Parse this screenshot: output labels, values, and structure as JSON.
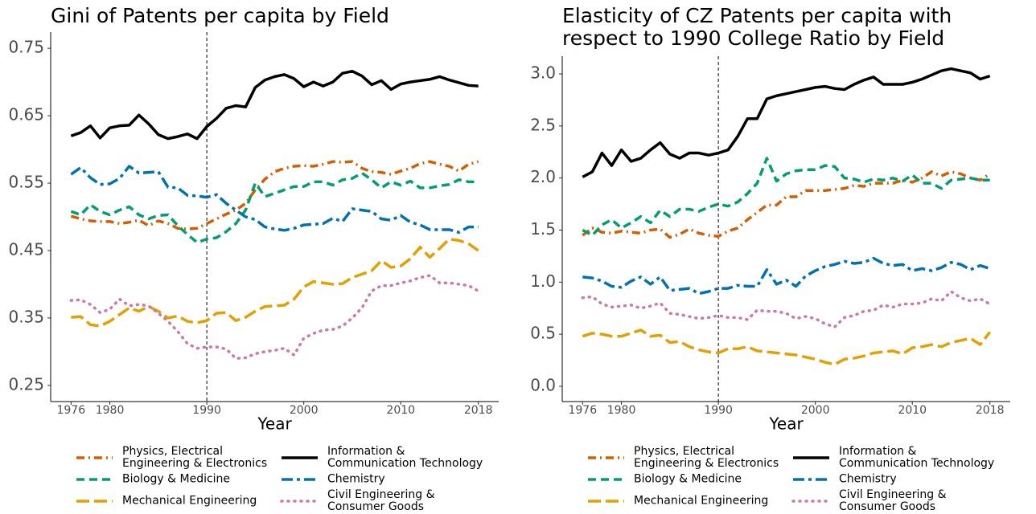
{
  "chart_data": [
    {
      "type": "line",
      "title": "Gini of Patents per capita by Field",
      "xlabel": "Year",
      "x": [
        1976,
        1977,
        1978,
        1979,
        1980,
        1981,
        1982,
        1983,
        1984,
        1985,
        1986,
        1987,
        1988,
        1989,
        1990,
        1991,
        1992,
        1993,
        1994,
        1995,
        1996,
        1997,
        1998,
        1999,
        2000,
        2001,
        2002,
        2003,
        2004,
        2005,
        2006,
        2007,
        2008,
        2009,
        2010,
        2011,
        2012,
        2013,
        2014,
        2015,
        2016,
        2017,
        2018
      ],
      "xlim": [
        1973.9,
        2020.1
      ],
      "xticks": [
        1976,
        1980,
        1990,
        2000,
        2010,
        2018
      ],
      "ylim": [
        0.226,
        0.774
      ],
      "yticks": [
        0.25,
        0.35,
        0.45,
        0.55,
        0.65,
        0.75
      ],
      "vline": 1990,
      "grid": false,
      "legend": "bottom",
      "series": [
        {
          "name": "Physics, Electrical Engineering & Electronics",
          "color": "#D55E00",
          "linestyle": "dashdot",
          "values": [
            0.501,
            0.497,
            0.494,
            0.493,
            0.493,
            0.49,
            0.492,
            0.495,
            0.487,
            0.494,
            0.49,
            0.483,
            0.482,
            0.483,
            0.49,
            0.497,
            0.504,
            0.51,
            0.52,
            0.54,
            0.556,
            0.567,
            0.572,
            0.575,
            0.576,
            0.575,
            0.578,
            0.582,
            0.581,
            0.582,
            0.572,
            0.567,
            0.566,
            0.563,
            0.568,
            0.572,
            0.579,
            0.582,
            0.578,
            0.575,
            0.568,
            0.578,
            0.582
          ]
        },
        {
          "name": "Biology & Medicine",
          "color": "#009E73",
          "linestyle": "dashed",
          "values": [
            0.508,
            0.503,
            0.518,
            0.508,
            0.503,
            0.51,
            0.515,
            0.503,
            0.497,
            0.502,
            0.503,
            0.487,
            0.474,
            0.462,
            0.467,
            0.469,
            0.478,
            0.49,
            0.51,
            0.55,
            0.53,
            0.535,
            0.54,
            0.545,
            0.545,
            0.552,
            0.552,
            0.547,
            0.555,
            0.557,
            0.565,
            0.555,
            0.543,
            0.552,
            0.547,
            0.553,
            0.543,
            0.543,
            0.546,
            0.548,
            0.555,
            0.552,
            0.552
          ]
        },
        {
          "name": "Mechanical Engineering",
          "color": "#E69F00",
          "linestyle": "longdash",
          "values": [
            0.351,
            0.352,
            0.34,
            0.338,
            0.345,
            0.355,
            0.365,
            0.36,
            0.367,
            0.36,
            0.35,
            0.353,
            0.345,
            0.343,
            0.346,
            0.357,
            0.358,
            0.346,
            0.351,
            0.36,
            0.367,
            0.368,
            0.369,
            0.378,
            0.396,
            0.404,
            0.402,
            0.4,
            0.401,
            0.41,
            0.415,
            0.42,
            0.435,
            0.425,
            0.427,
            0.438,
            0.455,
            0.44,
            0.453,
            0.467,
            0.465,
            0.46,
            0.45
          ]
        },
        {
          "name": "Information & Communication Technology",
          "color": "#000000",
          "linestyle": "solid",
          "values": [
            0.62,
            0.625,
            0.635,
            0.617,
            0.632,
            0.635,
            0.636,
            0.651,
            0.638,
            0.622,
            0.616,
            0.619,
            0.623,
            0.616,
            0.634,
            0.646,
            0.661,
            0.665,
            0.663,
            0.692,
            0.703,
            0.708,
            0.711,
            0.705,
            0.693,
            0.7,
            0.694,
            0.7,
            0.713,
            0.716,
            0.709,
            0.696,
            0.702,
            0.689,
            0.697,
            0.7,
            0.702,
            0.704,
            0.708,
            0.703,
            0.699,
            0.695,
            0.694
          ]
        },
        {
          "name": "Chemistry",
          "color": "#0072B2",
          "linestyle": "longdashdot",
          "values": [
            0.563,
            0.573,
            0.558,
            0.548,
            0.549,
            0.557,
            0.575,
            0.565,
            0.566,
            0.567,
            0.544,
            0.543,
            0.532,
            0.531,
            0.529,
            0.533,
            0.52,
            0.51,
            0.5,
            0.496,
            0.485,
            0.482,
            0.48,
            0.483,
            0.488,
            0.489,
            0.49,
            0.498,
            0.493,
            0.512,
            0.51,
            0.508,
            0.497,
            0.495,
            0.502,
            0.492,
            0.488,
            0.481,
            0.481,
            0.481,
            0.477,
            0.485,
            0.485
          ]
        },
        {
          "name": "Civil Engineering & Consumer Goods",
          "color": "#CC79A7",
          "linestyle": "dotted",
          "values": [
            0.376,
            0.377,
            0.37,
            0.358,
            0.363,
            0.378,
            0.368,
            0.37,
            0.368,
            0.357,
            0.345,
            0.33,
            0.312,
            0.305,
            0.307,
            0.307,
            0.304,
            0.29,
            0.291,
            0.297,
            0.3,
            0.302,
            0.305,
            0.295,
            0.32,
            0.327,
            0.332,
            0.333,
            0.338,
            0.35,
            0.365,
            0.39,
            0.398,
            0.398,
            0.402,
            0.405,
            0.41,
            0.413,
            0.402,
            0.402,
            0.4,
            0.398,
            0.39
          ]
        }
      ]
    },
    {
      "type": "line",
      "title": "Elasticity of CZ Patents per capita with respect to 1990 College Ratio by Field",
      "xlabel": "Year",
      "x": [
        1976,
        1977,
        1978,
        1979,
        1980,
        1981,
        1982,
        1983,
        1984,
        1985,
        1986,
        1987,
        1988,
        1989,
        1990,
        1991,
        1992,
        1993,
        1994,
        1995,
        1996,
        1997,
        1998,
        1999,
        2000,
        2001,
        2002,
        2003,
        2004,
        2005,
        2006,
        2007,
        2008,
        2009,
        2010,
        2011,
        2012,
        2013,
        2014,
        2015,
        2016,
        2017,
        2018
      ],
      "xlim": [
        1973.9,
        2020.1
      ],
      "xticks": [
        1976,
        1980,
        1990,
        2000,
        2010,
        2018
      ],
      "ylim": [
        -0.147,
        3.17
      ],
      "yticks": [
        {
          "value": 0,
          "label": "0.0"
        },
        0.5,
        {
          "value": 1,
          "label": "1.0"
        },
        1.5,
        {
          "value": 2,
          "label": "2.0"
        },
        2.5,
        {
          "value": 3,
          "label": "3.0"
        }
      ],
      "vline": 1990,
      "grid": false,
      "legend": "bottom",
      "series": [
        {
          "name": "Physics, Electrical Engineering & Electronics",
          "color": "#D55E00",
          "linestyle": "dashdot",
          "values": [
            1.45,
            1.52,
            1.48,
            1.47,
            1.49,
            1.48,
            1.47,
            1.5,
            1.51,
            1.43,
            1.46,
            1.51,
            1.47,
            1.45,
            1.44,
            1.49,
            1.52,
            1.6,
            1.67,
            1.74,
            1.74,
            1.82,
            1.82,
            1.88,
            1.88,
            1.88,
            1.89,
            1.9,
            1.93,
            1.92,
            1.95,
            1.95,
            1.95,
            1.98,
            1.96,
            2.0,
            2.06,
            2.02,
            2.06,
            2.04,
            2.0,
            1.98,
            2.04
          ]
        },
        {
          "name": "Biology & Medicine",
          "color": "#009E73",
          "linestyle": "dashed",
          "values": [
            1.5,
            1.45,
            1.55,
            1.6,
            1.52,
            1.57,
            1.63,
            1.57,
            1.69,
            1.63,
            1.7,
            1.7,
            1.68,
            1.72,
            1.75,
            1.73,
            1.77,
            1.85,
            1.95,
            2.19,
            1.97,
            2.04,
            2.07,
            2.08,
            2.08,
            2.12,
            2.11,
            2.0,
            1.99,
            1.96,
            1.99,
            1.98,
            2.0,
            1.97,
            2.03,
            1.95,
            1.95,
            1.9,
            1.98,
            1.99,
            2.0,
            1.98,
            1.98
          ]
        },
        {
          "name": "Mechanical Engineering",
          "color": "#E69F00",
          "linestyle": "longdash",
          "values": [
            0.48,
            0.51,
            0.5,
            0.48,
            0.48,
            0.51,
            0.54,
            0.48,
            0.49,
            0.42,
            0.43,
            0.38,
            0.35,
            0.33,
            0.32,
            0.36,
            0.36,
            0.38,
            0.34,
            0.33,
            0.32,
            0.31,
            0.3,
            0.28,
            0.26,
            0.23,
            0.21,
            0.26,
            0.27,
            0.29,
            0.32,
            0.33,
            0.34,
            0.31,
            0.37,
            0.38,
            0.4,
            0.38,
            0.42,
            0.44,
            0.46,
            0.4,
            0.52
          ]
        },
        {
          "name": "Information & Communication Technology",
          "color": "#000000",
          "linestyle": "solid",
          "values": [
            2.01,
            2.06,
            2.24,
            2.12,
            2.27,
            2.16,
            2.19,
            2.27,
            2.34,
            2.23,
            2.19,
            2.24,
            2.24,
            2.22,
            2.24,
            2.27,
            2.4,
            2.57,
            2.57,
            2.76,
            2.79,
            2.81,
            2.83,
            2.85,
            2.87,
            2.88,
            2.86,
            2.85,
            2.9,
            2.94,
            2.97,
            2.9,
            2.9,
            2.9,
            2.92,
            2.95,
            2.99,
            3.03,
            3.05,
            3.03,
            3.01,
            2.95,
            2.98
          ]
        },
        {
          "name": "Chemistry",
          "color": "#0072B2",
          "linestyle": "longdashdot",
          "values": [
            1.05,
            1.04,
            1.01,
            0.96,
            0.95,
            1.01,
            1.05,
            0.98,
            1.05,
            0.92,
            0.93,
            0.94,
            0.89,
            0.91,
            0.94,
            0.94,
            0.97,
            0.96,
            0.96,
            1.12,
            0.98,
            1.02,
            0.96,
            1.06,
            1.11,
            1.15,
            1.17,
            1.2,
            1.18,
            1.19,
            1.23,
            1.18,
            1.16,
            1.17,
            1.11,
            1.13,
            1.11,
            1.14,
            1.19,
            1.17,
            1.12,
            1.16,
            1.13
          ]
        },
        {
          "name": "Civil Engineering & Consumer Goods",
          "color": "#CC79A7",
          "linestyle": "dotted",
          "values": [
            0.85,
            0.86,
            0.79,
            0.76,
            0.77,
            0.78,
            0.75,
            0.77,
            0.8,
            0.7,
            0.69,
            0.67,
            0.65,
            0.66,
            0.68,
            0.66,
            0.66,
            0.64,
            0.73,
            0.72,
            0.72,
            0.7,
            0.65,
            0.67,
            0.65,
            0.6,
            0.57,
            0.66,
            0.68,
            0.72,
            0.73,
            0.78,
            0.76,
            0.79,
            0.79,
            0.8,
            0.84,
            0.82,
            0.91,
            0.85,
            0.82,
            0.84,
            0.79
          ]
        }
      ]
    }
  ]
}
